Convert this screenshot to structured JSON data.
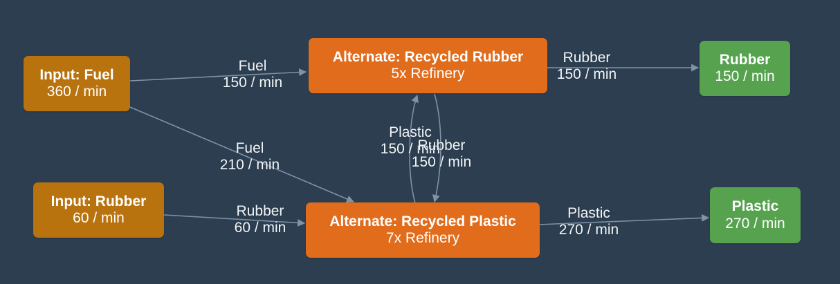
{
  "colors": {
    "background": "#2c3e50",
    "input_node": "#b8730e",
    "recipe_node": "#e16c1c",
    "output_node": "#56a24f",
    "edge": "#7f93a8"
  },
  "nodes": {
    "input_fuel": {
      "title": "Input: Fuel",
      "rate": "360 / min"
    },
    "input_rubber": {
      "title": "Input: Rubber",
      "rate": "60 / min"
    },
    "recycled_rubber": {
      "title": "Alternate: Recycled Rubber",
      "machines": "5x Refinery"
    },
    "recycled_plastic": {
      "title": "Alternate: Recycled Plastic",
      "machines": "7x Refinery"
    },
    "output_rubber": {
      "title": "Rubber",
      "rate": "150 / min"
    },
    "output_plastic": {
      "title": "Plastic",
      "rate": "270 / min"
    }
  },
  "edges": {
    "fuel_to_rubber": {
      "item": "Fuel",
      "rate": "150 / min"
    },
    "fuel_to_plastic": {
      "item": "Fuel",
      "rate": "210 / min"
    },
    "rubber_in_to_plastic": {
      "item": "Rubber",
      "rate": "60 / min"
    },
    "plastic_to_rubber": {
      "item": "Plastic",
      "rate": "150 / min"
    },
    "rubber_to_plastic": {
      "item": "Rubber",
      "rate": "150 / min"
    },
    "rubber_to_output": {
      "item": "Rubber",
      "rate": "150 / min"
    },
    "plastic_to_output": {
      "item": "Plastic",
      "rate": "270 / min"
    }
  }
}
